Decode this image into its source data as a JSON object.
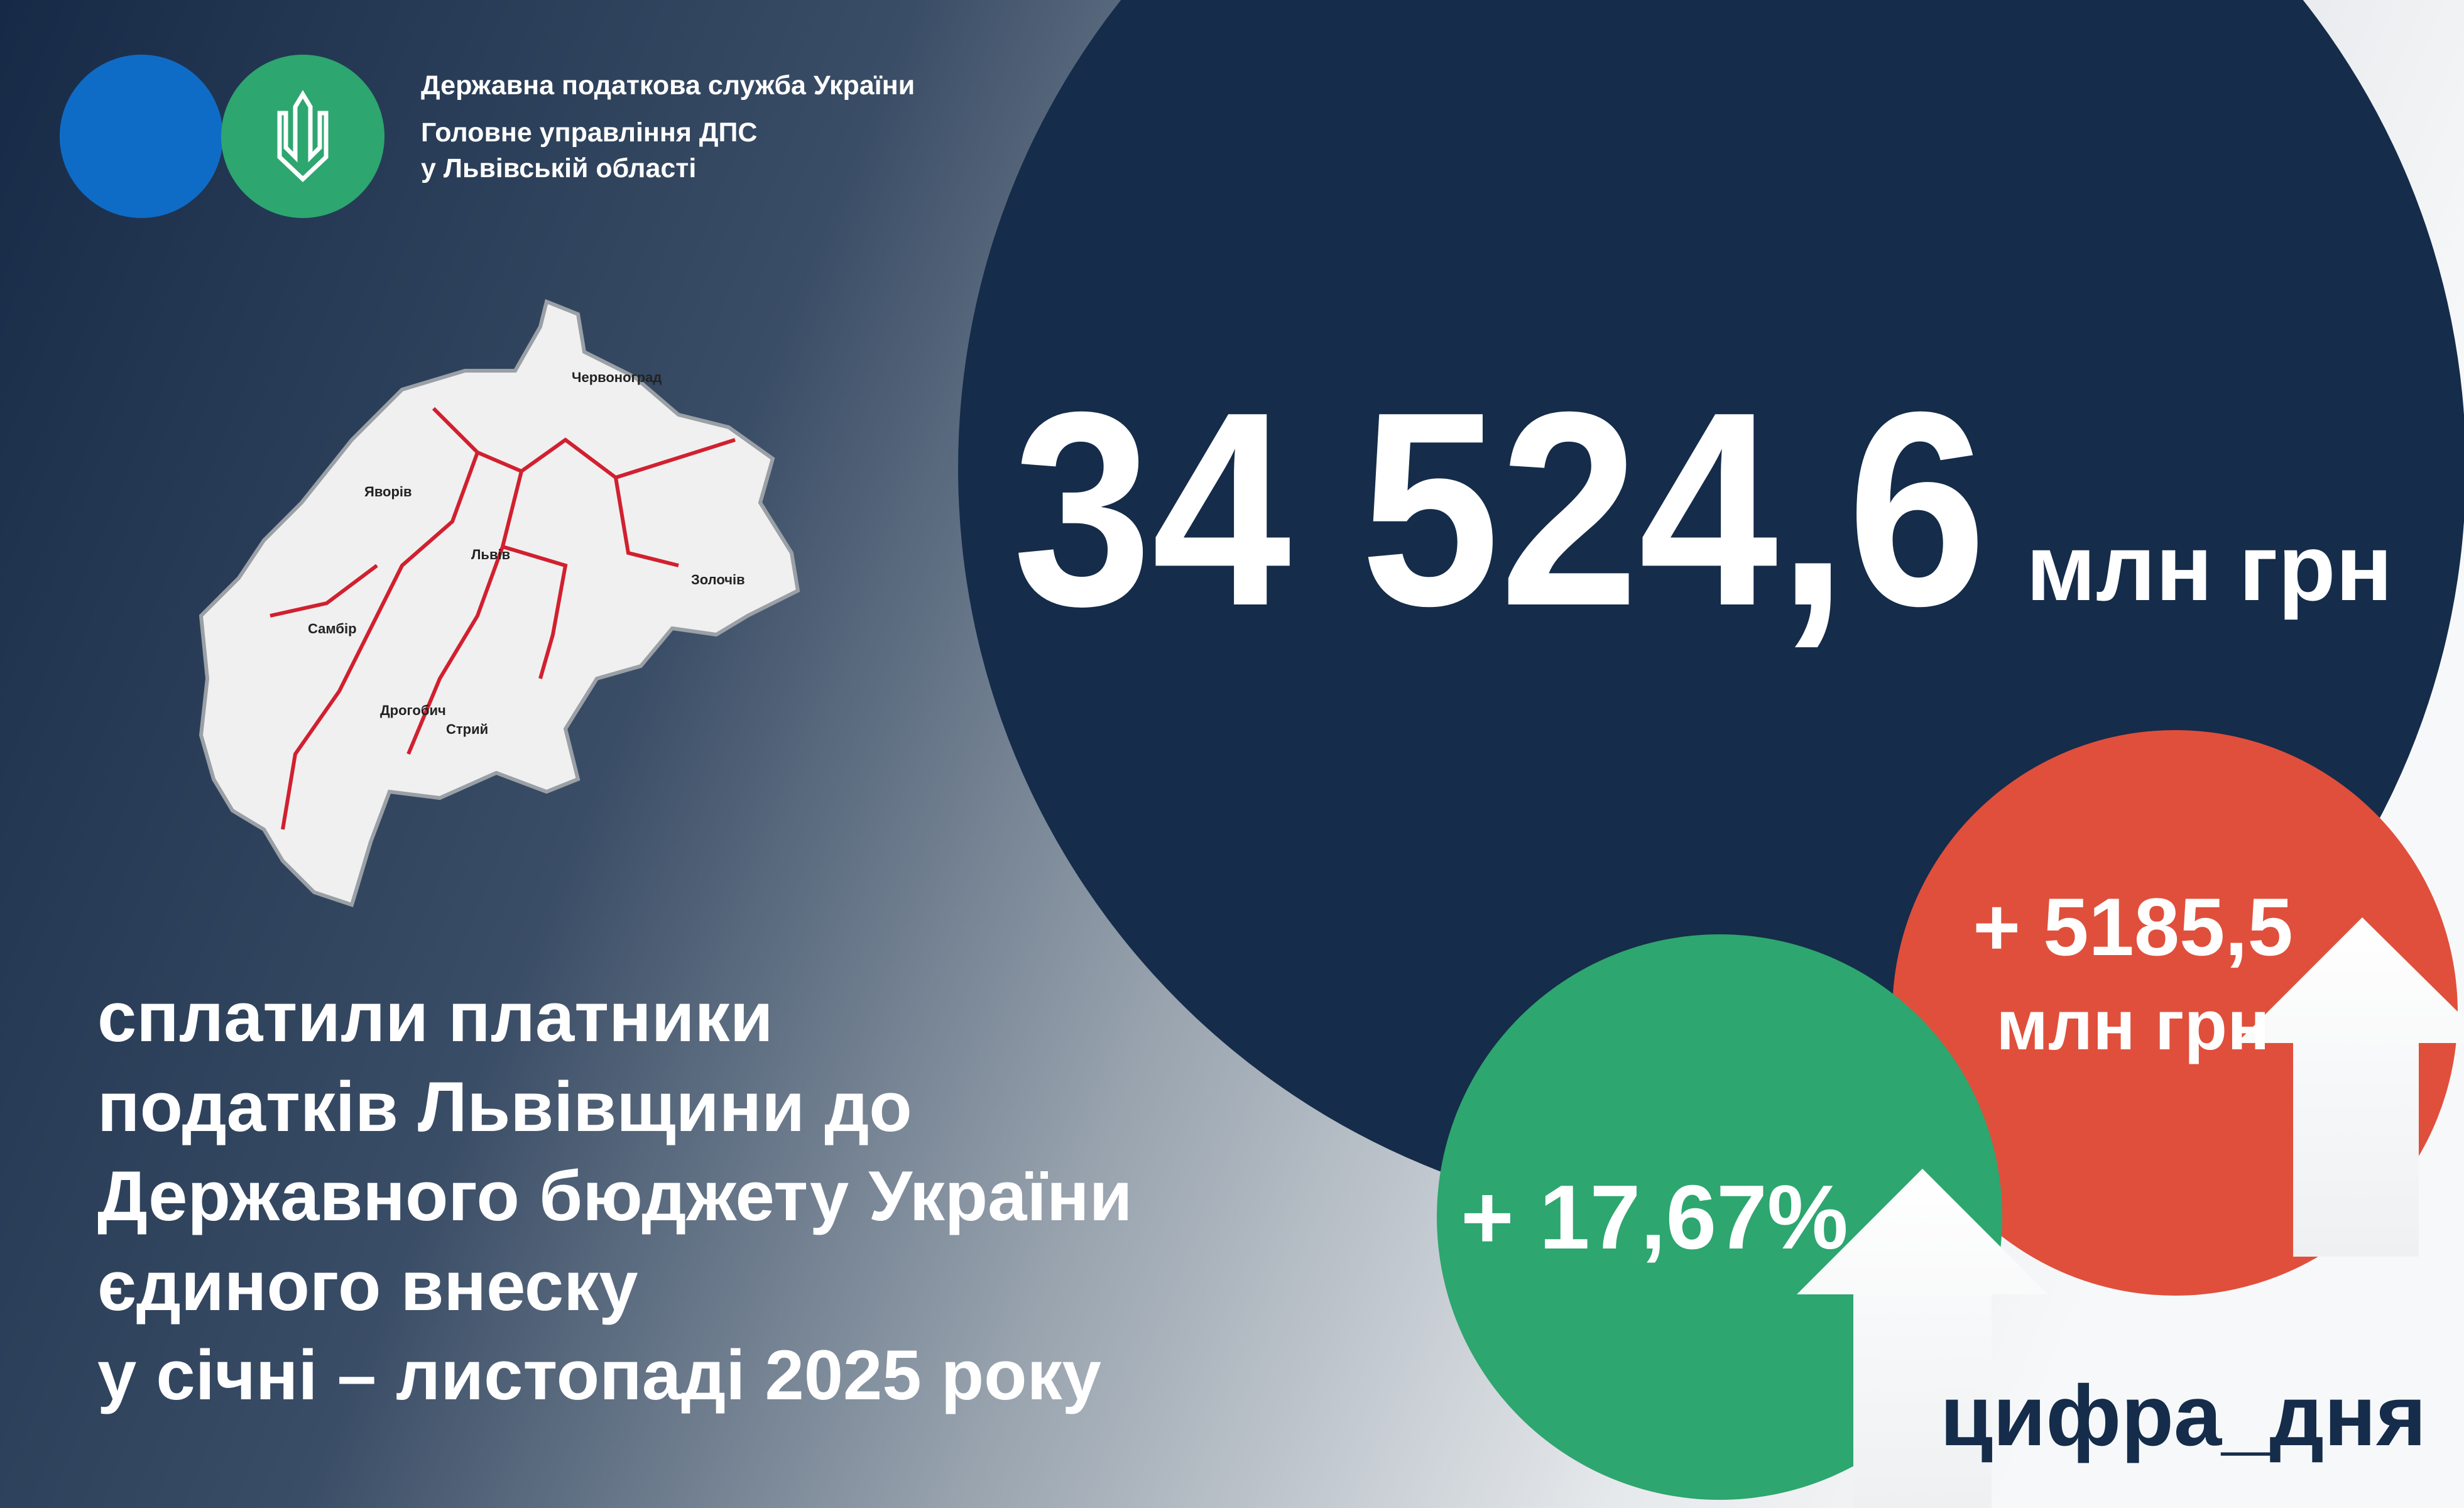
{
  "header": {
    "lines": [
      "Державна податкова служба України",
      "Головне управління ДПС",
      "у Львівській області"
    ]
  },
  "map": {
    "cities": [
      "Червоноград",
      "Яворів",
      "Львів",
      "Самбір",
      "Дрогобич",
      "Стрий",
      "Золочів"
    ]
  },
  "main": {
    "amount": "34 524,6",
    "unit": "млн грн"
  },
  "description": {
    "lines": [
      "сплатили платники",
      "податків Львівщини до",
      "Державного бюджету України",
      "єдиного внеску",
      "у січні – листопаді 2025 року"
    ]
  },
  "growth_percent": {
    "text": "+ 17,67%"
  },
  "growth_amount": {
    "amount": "+ 5185,5",
    "unit": "млн грн"
  },
  "hashtag": "цифра_дня"
}
